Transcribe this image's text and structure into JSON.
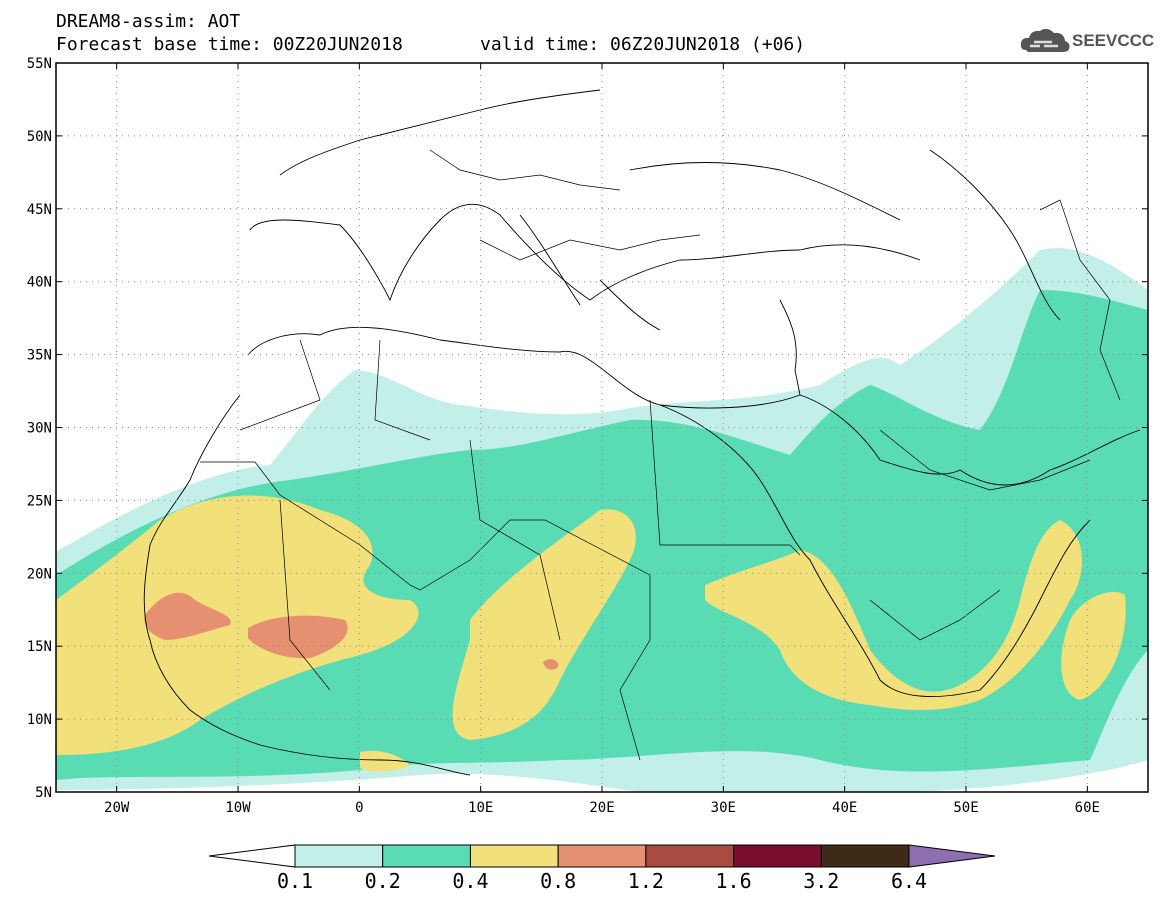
{
  "header": {
    "model_title": "DREAM8-assim: AOT",
    "base_time": "Forecast base time: 00Z20JUN2018",
    "valid_time": "valid time: 06Z20JUN2018 (+06)"
  },
  "logo": {
    "text": "SEEVCCC",
    "icon": "cloud-icon"
  },
  "map": {
    "lat_labels": [
      "55N",
      "50N",
      "45N",
      "40N",
      "35N",
      "30N",
      "25N",
      "20N",
      "15N",
      "10N",
      "5N"
    ],
    "lon_labels": [
      "20W",
      "10W",
      "0",
      "10E",
      "20E",
      "30E",
      "40E",
      "50E",
      "60E"
    ],
    "lat_range": [
      5,
      55
    ],
    "lon_range": [
      -25,
      65
    ],
    "grid": "dotted",
    "colors": {
      "c1": "#c3efe9",
      "c2": "#59dcb4",
      "c3": "#f2e07a",
      "c4": "#e59070",
      "c5": "#a94b41",
      "c6": "#7a0d2c",
      "c7": "#3e2a16",
      "c8": "#8e6eb0",
      "border": "#000000"
    }
  },
  "colorbar": {
    "labels": [
      "0.1",
      "0.2",
      "0.4",
      "0.8",
      "1.2",
      "1.6",
      "3.2",
      "6.4"
    ],
    "colors": [
      "#ffffff",
      "#c3efe9",
      "#59dcb4",
      "#f2e07a",
      "#e59070",
      "#a94b41",
      "#7a0d2c",
      "#3e2a16",
      "#8e6eb0"
    ]
  }
}
